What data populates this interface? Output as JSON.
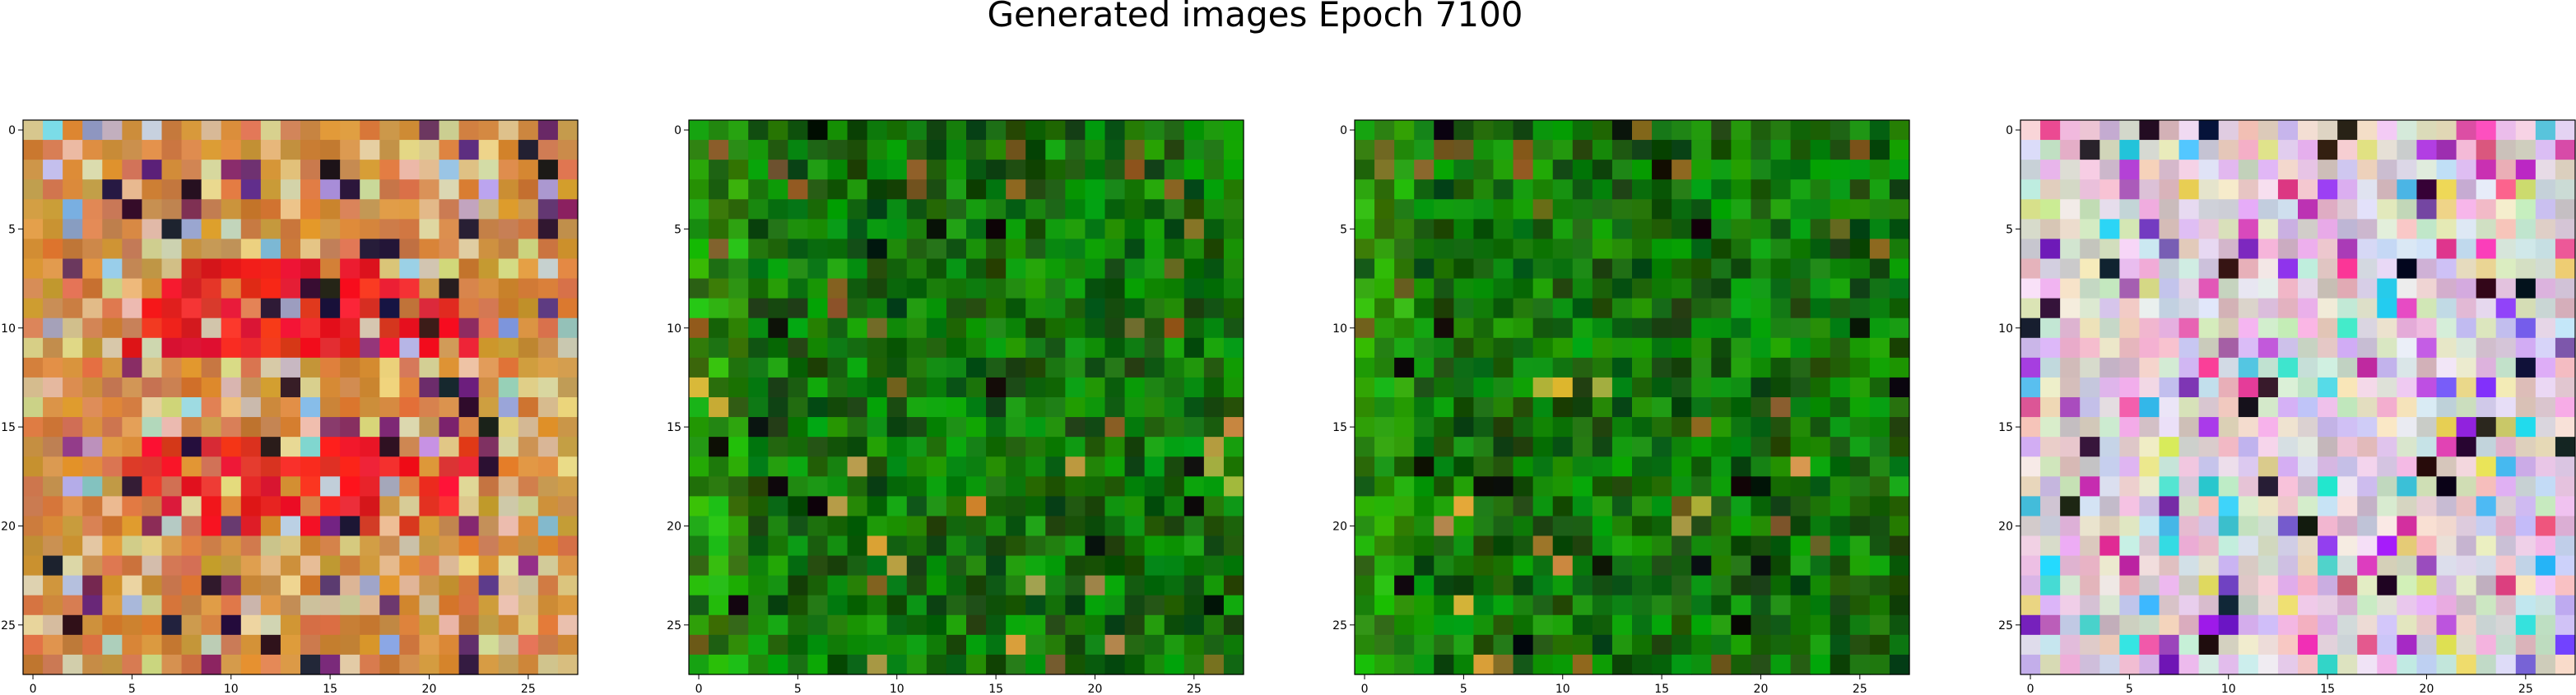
{
  "figure": {
    "title": "Generated images Epoch 7100"
  },
  "panels": [
    {
      "palette": "warm-red",
      "colors": {
        "base": "#d88a3c",
        "accent": "#e8231a",
        "dark": "#5a1e0a"
      }
    },
    {
      "palette": "green",
      "colors": {
        "base": "#1e6a10",
        "accent": "#4caf28",
        "dark": "#0a2a04"
      }
    },
    {
      "palette": "green",
      "colors": {
        "base": "#1e6a10",
        "accent": "#4caf28",
        "dark": "#0a2a04"
      }
    },
    {
      "palette": "pastel",
      "colors": {
        "base": "#e0c0d0",
        "accent": "#7a3ad0",
        "dark": "#202040"
      }
    }
  ],
  "axes": {
    "x_ticks": [
      "0",
      "5",
      "10",
      "15",
      "20",
      "25"
    ],
    "y_ticks": [
      "0",
      "5",
      "10",
      "15",
      "20",
      "25"
    ],
    "image_size": "28x28 pixels"
  }
}
